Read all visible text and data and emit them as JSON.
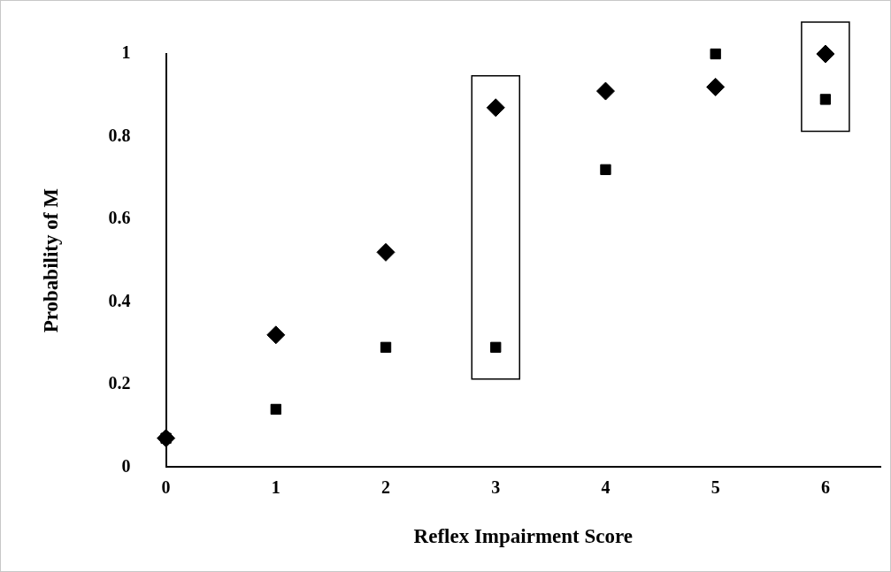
{
  "chart_data": {
    "type": "scatter",
    "xlabel": "Reflex Impairment Score",
    "ylabel": "Probability of M",
    "x": [
      0,
      1,
      2,
      3,
      4,
      5,
      6
    ],
    "series": [
      {
        "color": "#000000",
        "marker": "square",
        "values": [
          0.07,
          0.14,
          0.29,
          0.29,
          0.72,
          1.0,
          0.89
        ]
      },
      {
        "color": "#000000",
        "marker": "diamond",
        "values": [
          0.07,
          0.32,
          0.52,
          0.87,
          0.91,
          0.92,
          1.0
        ]
      }
    ],
    "xlim": [
      0,
      6.5
    ],
    "xticks": [
      0,
      1,
      2,
      3,
      4,
      5,
      6
    ],
    "ylim": [
      0,
      1
    ],
    "yticks": [
      0,
      0.2,
      0.4,
      0.6,
      0.8,
      1
    ],
    "grid": false,
    "legend": false
  }
}
